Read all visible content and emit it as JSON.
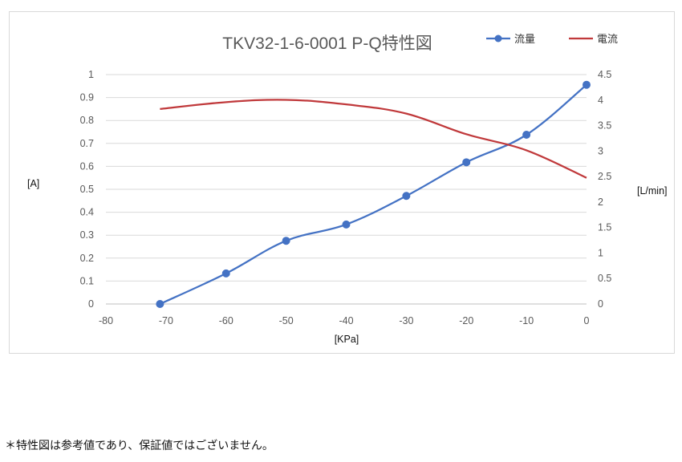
{
  "chart_data": {
    "type": "line",
    "title": "TKV32-1-6-0001 P-Q特性図",
    "xlabel": "[KPa]",
    "ylabel_left": "[A]",
    "ylabel_right": "[L/min]",
    "xlim": [
      -80,
      0
    ],
    "ylim_left": [
      0,
      1
    ],
    "ylim_right": [
      0,
      4.5
    ],
    "x_ticks": [
      "-80",
      "-70",
      "-60",
      "-50",
      "-40",
      "-30",
      "-20",
      "-10",
      "0"
    ],
    "y_left_ticks": [
      "0",
      "0.1",
      "0.2",
      "0.3",
      "0.4",
      "0.5",
      "0.6",
      "0.7",
      "0.8",
      "0.9",
      "1"
    ],
    "y_right_ticks": [
      "0",
      "0.5",
      "1",
      "1.5",
      "2",
      "2.5",
      "3",
      "3.5",
      "4",
      "4.5"
    ],
    "grid": "horizontal",
    "legend": "top-right",
    "series": [
      {
        "name": "流量",
        "axis": "right",
        "color": "#4472c4",
        "markers": true,
        "x": [
          -71,
          -60,
          -50,
          -40,
          -30,
          -20,
          -10,
          0
        ],
        "values": [
          0,
          0.6,
          1.24,
          1.56,
          2.12,
          2.78,
          3.32,
          4.3
        ]
      },
      {
        "name": "電流",
        "axis": "left",
        "color": "#c0393b",
        "markers": false,
        "x": [
          -71,
          -60,
          -50,
          -40,
          -30,
          -20,
          -10,
          0
        ],
        "values": [
          0.85,
          0.88,
          0.89,
          0.87,
          0.83,
          0.74,
          0.67,
          0.55
        ]
      }
    ]
  },
  "footnote": "＊特性図は参考値であり、保証値ではございません。"
}
